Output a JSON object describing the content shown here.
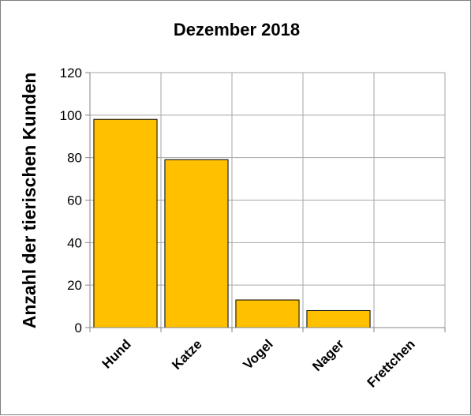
{
  "chart_data": {
    "type": "bar",
    "title": "Dezember 2018",
    "xlabel": "",
    "ylabel": "Anzahl der tierischen Kunden",
    "categories": [
      "Hund",
      "Katze",
      "Vogel",
      "Nager",
      "Frettchen"
    ],
    "values": [
      98,
      79,
      13,
      8,
      0
    ],
    "ylim": [
      0,
      120
    ],
    "yticks": [
      0,
      20,
      40,
      60,
      80,
      100,
      120
    ],
    "grid": true,
    "legend": "none",
    "colors": {
      "bar_fill": "#FFC000",
      "bar_stroke": "#000000",
      "grid": "#a6a6a6",
      "axis": "#868686"
    }
  }
}
